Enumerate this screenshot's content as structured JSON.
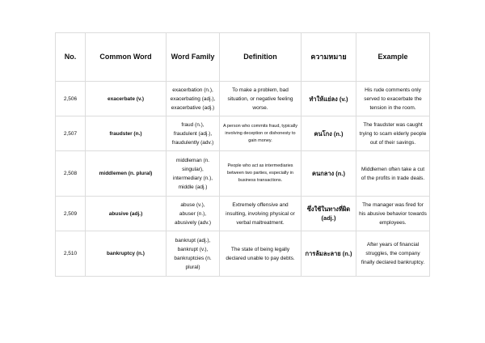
{
  "headers": [
    "No.",
    "Common Word",
    "Word Family",
    "Definition",
    "ความหมาย",
    "Example"
  ],
  "rows": [
    {
      "no": "2,506",
      "word": "exacerbate (v.)",
      "family": "exacerbation (n.),\nexacerbating (adj.),\nexacerbative (adj.)",
      "definition": "To make a problem, bad situation, or negative feeling worse.",
      "thai": "ทำให้แย่ลง (v.)",
      "example": "His rude comments only served to exacerbate the tension in the room."
    },
    {
      "no": "2,507",
      "word": "fraudster (n.)",
      "family": "fraud (n.),\nfraudulent (adj.),\nfraudulently (adv.)",
      "definition": "A person who commits fraud, typically involving deception or dishonesty to gain money.",
      "thai": "คนโกง (n.)",
      "example": "The fraudster was caught trying to scam elderly people out of their savings."
    },
    {
      "no": "2,508",
      "word": "middlemen (n. plural)",
      "family": "middleman (n. singular),\nintermediary (n.),\nmiddle (adj.)",
      "definition": "People who act as intermediaries between two parties, especially in business transactions.",
      "thai": "คนกลาง (n.)",
      "example": "Middlemen often take a cut of the profits in trade deals."
    },
    {
      "no": "2,509",
      "word": "abusive (adj.)",
      "family": "abuse (v.),\nabuser (n.),\nabusively (adv.)",
      "definition": "Extremely offensive and insulting, involving physical or verbal maltreatment.",
      "thai": "ซึ่งใช้ในทางที่ผิด (adj.)",
      "example": "The manager was fired for his abusive behavior towards employees."
    },
    {
      "no": "2,510",
      "word": "bankruptcy (n.)",
      "family": "bankrupt (adj.),\nbankrupt (v.),\nbankruptcies (n. plural)",
      "definition": "The state of being legally declared unable to pay debts.",
      "thai": "การล้มละลาย (n.)",
      "example": "After years of financial struggles, the company finally declared bankruptcy."
    }
  ]
}
